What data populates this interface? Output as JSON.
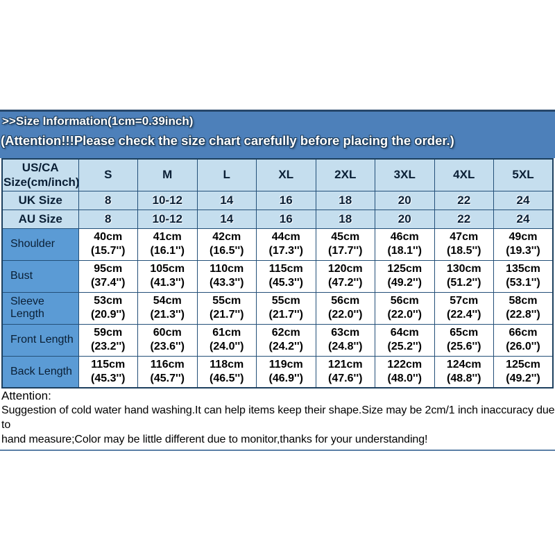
{
  "banner": {
    "line1": ">>Size Information(1cm=0.39inch)",
    "line2": "(Attention!!!Please check the size chart carefully before placing the order.)",
    "bg_color": "#4d80ba",
    "text_color": "#ffffff"
  },
  "size_table": {
    "corner_label": "US/CA\nSize(cm/inch)",
    "size_columns": [
      "S",
      "M",
      "L",
      "XL",
      "2XL",
      "3XL",
      "4XL",
      "5XL"
    ],
    "region_rows": [
      {
        "label": "UK Size",
        "values": [
          "8",
          "10-12",
          "14",
          "16",
          "18",
          "20",
          "22",
          "24"
        ]
      },
      {
        "label": "AU Size",
        "values": [
          "8",
          "10-12",
          "14",
          "16",
          "18",
          "20",
          "22",
          "24"
        ]
      }
    ],
    "measurement_rows": [
      {
        "label": "Shoulder",
        "cm": [
          "40cm",
          "41cm",
          "42cm",
          "44cm",
          "45cm",
          "46cm",
          "47cm",
          "49cm"
        ],
        "inch": [
          "(15.7'')",
          "(16.1'')",
          "(16.5'')",
          "(17.3'')",
          "(17.7'')",
          "(18.1'')",
          "(18.5'')",
          "(19.3'')"
        ]
      },
      {
        "label": "Bust",
        "cm": [
          "95cm",
          "105cm",
          "110cm",
          "115cm",
          "120cm",
          "125cm",
          "130cm",
          "135cm"
        ],
        "inch": [
          "(37.4'')",
          "(41.3'')",
          "(43.3'')",
          "(45.3'')",
          "(47.2'')",
          "(49.2'')",
          "(51.2'')",
          "(53.1'')"
        ]
      },
      {
        "label": "Sleeve Length",
        "cm": [
          "53cm",
          "54cm",
          "55cm",
          "55cm",
          "56cm",
          "56cm",
          "57cm",
          "58cm"
        ],
        "inch": [
          "(20.9'')",
          "(21.3'')",
          "(21.7'')",
          "(21.7'')",
          "(22.0'')",
          "(22.0'')",
          "(22.4'')",
          "(22.8'')"
        ]
      },
      {
        "label": "Front Length",
        "cm": [
          "59cm",
          "60cm",
          "61cm",
          "62cm",
          "63cm",
          "64cm",
          "65cm",
          "66cm"
        ],
        "inch": [
          "(23.2'')",
          "(23.6'')",
          "(24.0'')",
          "(24.2'')",
          "(24.8'')",
          "(25.2'')",
          "(25.6'')",
          "(26.0'')"
        ]
      },
      {
        "label": "Back Length",
        "cm": [
          "115cm",
          "116cm",
          "118cm",
          "119cm",
          "121cm",
          "122cm",
          "124cm",
          "125cm"
        ],
        "inch": [
          "(45.3'')",
          "(45.7'')",
          "(46.5'')",
          "(46.9'')",
          "(47.6'')",
          "(48.0'')",
          "(48.8'')",
          "(49.2'')"
        ]
      }
    ],
    "colors": {
      "header_bg": "#c5deee",
      "measurement_label_bg": "#5b9bd5",
      "data_bg": "#ffffff",
      "border": "#234f78",
      "banner_bg": "#4d80ba"
    }
  },
  "attention": {
    "title": "Attention:",
    "body": "Suggestion of cold water hand washing.It can help items keep their shape.Size may be 2cm/1 inch inaccuracy due to\nhand measure;Color may be little different due to monitor,thanks for your understanding!"
  }
}
